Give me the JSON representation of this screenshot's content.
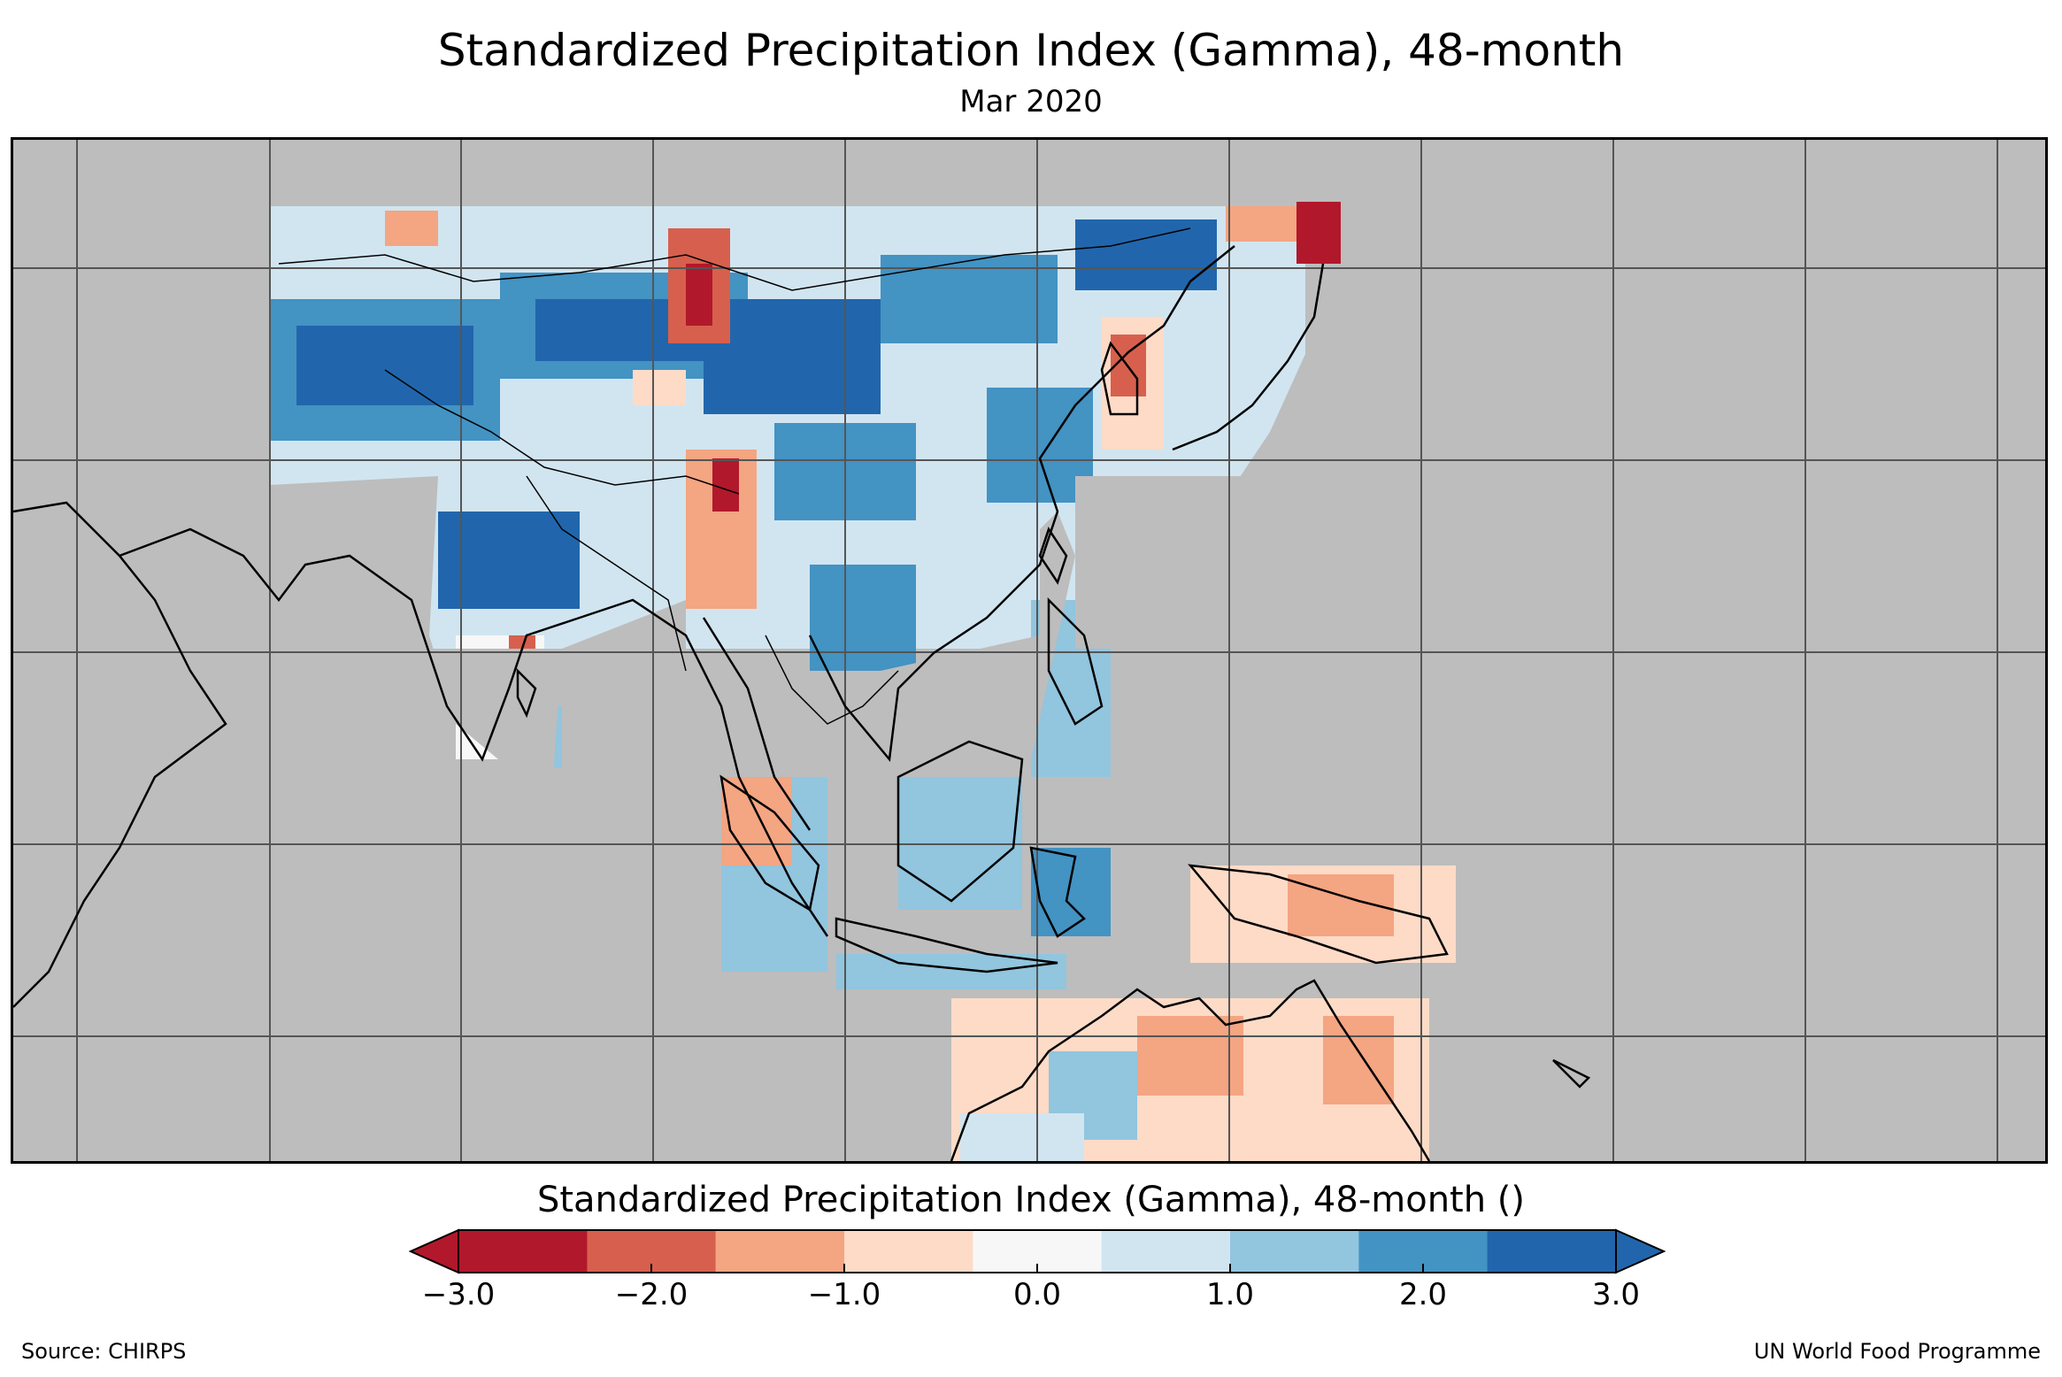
{
  "title": "Standardized Precipitation Index (Gamma), 48-month",
  "subtitle": "Mar 2020",
  "colorbar": {
    "title": "Standardized Precipitation Index (Gamma), 48-month ()",
    "min": -3.0,
    "max": 3.0,
    "extend": "both",
    "low_color": "#b2182b",
    "high_color": "#2166ac",
    "bins": [
      {
        "from": -3.0,
        "to": -2.333,
        "color": "#b2182b"
      },
      {
        "from": -2.333,
        "to": -1.667,
        "color": "#d6604d"
      },
      {
        "from": -1.667,
        "to": -1.0,
        "color": "#f4a582"
      },
      {
        "from": -1.0,
        "to": -0.333,
        "color": "#fddbc7"
      },
      {
        "from": -0.333,
        "to": 0.333,
        "color": "#f7f7f7"
      },
      {
        "from": 0.333,
        "to": 1.0,
        "color": "#d1e5f0"
      },
      {
        "from": 1.0,
        "to": 1.667,
        "color": "#92c5de"
      },
      {
        "from": 1.667,
        "to": 2.333,
        "color": "#4393c3"
      },
      {
        "from": 2.333,
        "to": 3.0,
        "color": "#2166ac"
      }
    ],
    "tick_labels": [
      "−3.0",
      "−2.0",
      "−1.0",
      "0.0",
      "1.0",
      "2.0",
      "3.0"
    ],
    "tick_values": [
      -3,
      -2,
      -1,
      0,
      1,
      2,
      3
    ]
  },
  "map": {
    "background": "#bdbdbd",
    "land_no_data_color": "#bdbdbd"
  },
  "footer": {
    "source": "Source: CHIRPS",
    "credit": "UN World Food Programme"
  }
}
